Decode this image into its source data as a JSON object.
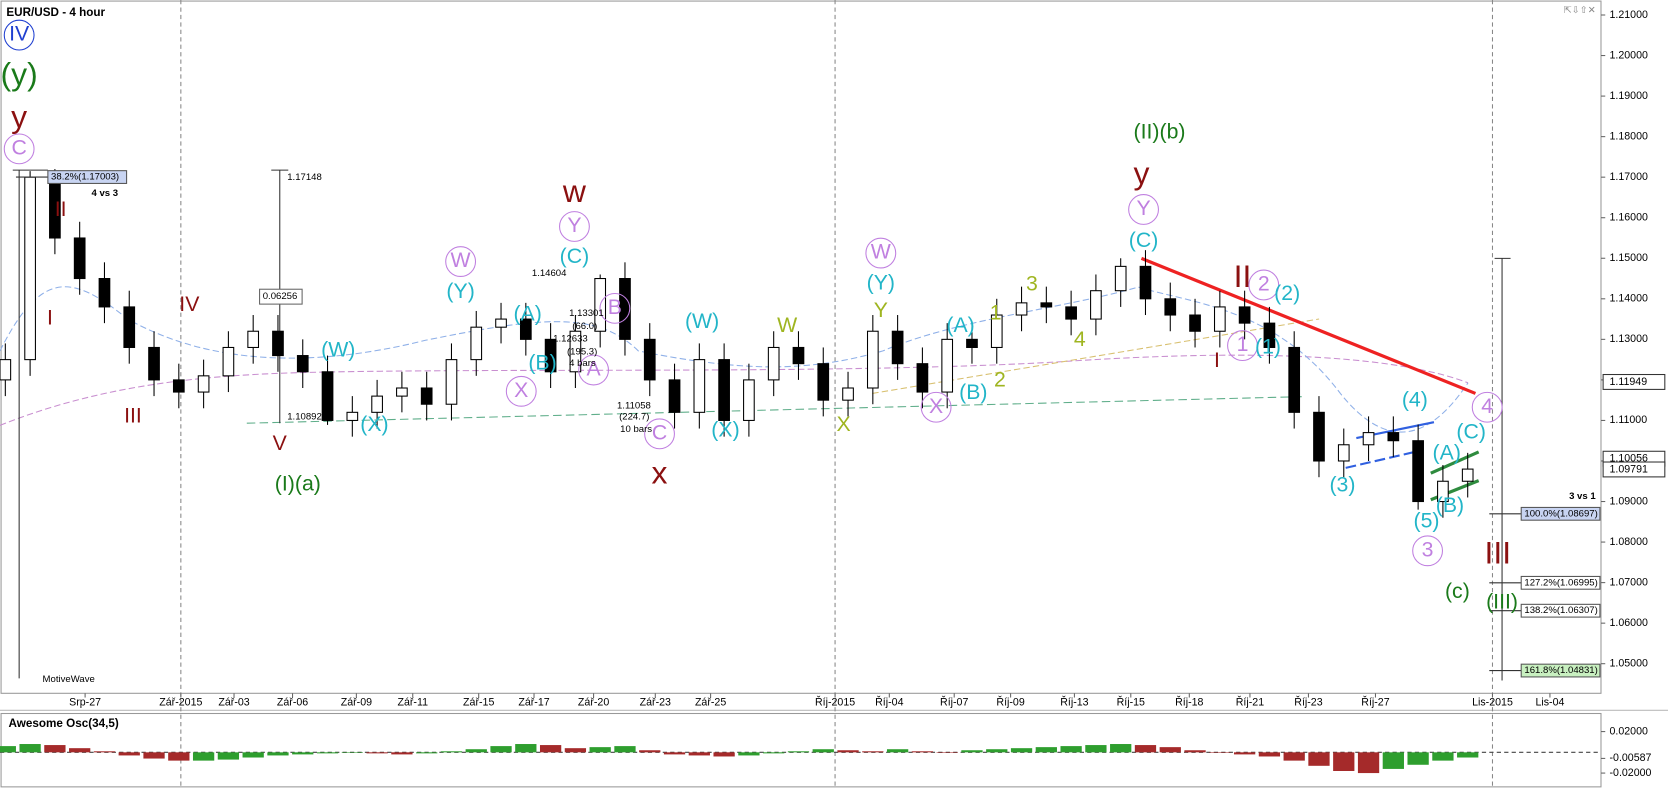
{
  "chart_data": {
    "type": "candlestick",
    "title": "EUR/USD - 4 hour",
    "up_color": "#ffffff",
    "down_color": "#000000",
    "ylim": [
      1.0427,
      1.2137
    ],
    "yticks": [
      {
        "value": 1.21,
        "label": "1.21000"
      },
      {
        "value": 1.2,
        "label": "1.20000"
      },
      {
        "value": 1.19,
        "label": "1.19000"
      },
      {
        "value": 1.18,
        "label": "1.18000"
      },
      {
        "value": 1.17,
        "label": "1.17000"
      },
      {
        "value": 1.16,
        "label": "1.16000"
      },
      {
        "value": 1.15,
        "label": "1.15000"
      },
      {
        "value": 1.14,
        "label": "1.14000"
      },
      {
        "value": 1.13,
        "label": "1.13000"
      },
      {
        "value": 1.12,
        "label": "1.12000"
      },
      {
        "value": 1.11,
        "label": "1.11000"
      },
      {
        "value": 1.1,
        "label": "1.10000"
      },
      {
        "value": 1.09,
        "label": "1.09000"
      },
      {
        "value": 1.08,
        "label": "1.08000"
      },
      {
        "value": 1.07,
        "label": "1.07000"
      },
      {
        "value": 1.06,
        "label": "1.06000"
      },
      {
        "value": 1.05,
        "label": "1.05000"
      }
    ],
    "date_labels": [
      "Srp-27",
      "Zář-2015",
      "Zář-03",
      "Zář-06",
      "Zář-09",
      "Zář-11",
      "Zář-15",
      "Zář-17",
      "Zář-20",
      "Zář-23",
      "Zář-25",
      "Říj-2015",
      "Říj-04",
      "Říj-07",
      "Říj-09",
      "Říj-13",
      "Říj-15",
      "Říj-18",
      "Říj-21",
      "Říj-23",
      "Říj-27",
      "Lis-2015",
      "Lis-04"
    ],
    "open": [
      1.12,
      1.125,
      1.17,
      1.155,
      1.145,
      1.138,
      1.128,
      1.12,
      1.117,
      1.121,
      1.128,
      1.132,
      1.126,
      1.122,
      1.11,
      1.112,
      1.116,
      1.118,
      1.114,
      1.125,
      1.133,
      1.135,
      1.13,
      1.122,
      1.132,
      1.145,
      1.13,
      1.12,
      1.112,
      1.125,
      1.11,
      1.12,
      1.128,
      1.124,
      1.115,
      1.118,
      1.132,
      1.124,
      1.117,
      1.13,
      1.128,
      1.136,
      1.139,
      1.138,
      1.135,
      1.142,
      1.148,
      1.14,
      1.136,
      1.132,
      1.138,
      1.134,
      1.128,
      1.112,
      1.1,
      1.104,
      1.107,
      1.105,
      1.09,
      1.095
    ],
    "high": [
      1.129,
      1.1715,
      1.172,
      1.159,
      1.149,
      1.142,
      1.132,
      1.124,
      1.125,
      1.132,
      1.136,
      1.136,
      1.13,
      1.126,
      1.116,
      1.12,
      1.122,
      1.122,
      1.129,
      1.137,
      1.139,
      1.139,
      1.134,
      1.136,
      1.146,
      1.149,
      1.134,
      1.124,
      1.129,
      1.129,
      1.124,
      1.132,
      1.132,
      1.128,
      1.122,
      1.136,
      1.136,
      1.128,
      1.134,
      1.134,
      1.14,
      1.143,
      1.143,
      1.142,
      1.146,
      1.15,
      1.152,
      1.144,
      1.14,
      1.142,
      1.142,
      1.138,
      1.132,
      1.116,
      1.108,
      1.111,
      1.111,
      1.109,
      1.099,
      1.102
    ],
    "low": [
      1.116,
      1.121,
      1.151,
      1.141,
      1.134,
      1.124,
      1.116,
      1.113,
      1.113,
      1.117,
      1.124,
      1.122,
      1.118,
      1.1089,
      1.106,
      1.108,
      1.112,
      1.11,
      1.11,
      1.121,
      1.129,
      1.126,
      1.118,
      1.118,
      1.128,
      1.126,
      1.116,
      1.108,
      1.108,
      1.106,
      1.106,
      1.116,
      1.12,
      1.111,
      1.111,
      1.114,
      1.12,
      1.113,
      1.113,
      1.124,
      1.124,
      1.132,
      1.134,
      1.131,
      1.131,
      1.138,
      1.136,
      1.132,
      1.128,
      1.128,
      1.13,
      1.124,
      1.108,
      1.096,
      1.096,
      1.1,
      1.101,
      1.088,
      1.086,
      1.091
    ],
    "close": [
      1.125,
      1.17,
      1.155,
      1.145,
      1.138,
      1.128,
      1.12,
      1.117,
      1.121,
      1.128,
      1.132,
      1.126,
      1.122,
      1.11,
      1.112,
      1.116,
      1.118,
      1.114,
      1.125,
      1.133,
      1.135,
      1.13,
      1.122,
      1.132,
      1.145,
      1.13,
      1.12,
      1.112,
      1.125,
      1.11,
      1.12,
      1.128,
      1.124,
      1.115,
      1.118,
      1.132,
      1.124,
      1.117,
      1.13,
      1.128,
      1.136,
      1.139,
      1.138,
      1.135,
      1.142,
      1.148,
      1.14,
      1.136,
      1.132,
      1.138,
      1.134,
      1.128,
      1.112,
      1.1,
      1.104,
      1.107,
      1.105,
      1.09,
      1.095,
      1.098
    ],
    "price_markers": [
      {
        "value": 1.11949,
        "label": "1.11949"
      },
      {
        "value": 1.10056,
        "label": "1.10056"
      },
      {
        "value": 1.09791,
        "label": "1.09791"
      }
    ],
    "fib_levels": [
      {
        "value": 1.17003,
        "label": "38.2%(1.17003)"
      },
      {
        "value": 1.08697,
        "label": "100.0%(1.08697)"
      },
      {
        "value": 1.06995,
        "label": "127.2%(1.06995)"
      },
      {
        "value": 1.06307,
        "label": "138.2%(1.06307)"
      },
      {
        "value": 1.04831,
        "label": "161.8%(1.04831)"
      }
    ],
    "wave_labels": [
      "IV",
      "(y)",
      "y",
      "C",
      "II",
      "I",
      "III",
      "IV",
      "V",
      "(I)(a)",
      "(W)",
      "(X)",
      "W",
      "(Y)",
      "(A)",
      "(B)",
      "X",
      "w",
      "Y",
      "(C)",
      "B",
      "A",
      "C",
      "x",
      "(W)",
      "(X)",
      "W",
      "W",
      "(Y)",
      "Y",
      "X",
      "X",
      "(A)",
      "(B)",
      "1",
      "2",
      "3",
      "4",
      "(II)(b)",
      "y",
      "Y",
      "(C)",
      "II",
      "2",
      "(2)",
      "I",
      "1",
      "(1)",
      "(3)",
      "(4)",
      "(C)",
      "(A)",
      "(B)",
      "(5)",
      "3",
      "4",
      "III",
      "(c)",
      "(III)"
    ],
    "notes": [
      "1.14604",
      "1.13301",
      "(66.0)",
      "1.12633",
      "(195.3)",
      "4 bars",
      "1.11058",
      "(224.7)",
      "10 bars",
      "1.10892",
      "1.17148",
      "0.06256",
      "4 vs 3",
      "3 vs 1",
      "MotiveWave"
    ],
    "oscillator": {
      "title": "Awesome Osc(34,5)",
      "up_color": "#2e9e2e",
      "down_color": "#a52a2a",
      "ylim": [
        -0.0333,
        0.0364
      ],
      "yticks": [
        {
          "value": 0.02,
          "label": "0.02000"
        },
        {
          "value": -0.00587,
          "label": "-0.00587"
        },
        {
          "value": -0.02,
          "label": "-0.02000"
        }
      ],
      "values": [
        0.006,
        0.008,
        0.007,
        0.004,
        0.001,
        -0.003,
        -0.006,
        -0.008,
        -0.008,
        -0.007,
        -0.005,
        -0.003,
        -0.002,
        -0.001,
        0.0,
        -0.001,
        -0.002,
        -0.001,
        0.001,
        0.003,
        0.006,
        0.008,
        0.007,
        0.004,
        0.005,
        0.006,
        0.002,
        -0.002,
        -0.003,
        -0.004,
        -0.003,
        -0.001,
        0.001,
        0.003,
        0.002,
        0.001,
        0.003,
        0.001,
        0.0,
        0.002,
        0.003,
        0.004,
        0.005,
        0.006,
        0.007,
        0.008,
        0.007,
        0.005,
        0.002,
        0.0,
        -0.002,
        -0.004,
        -0.008,
        -0.013,
        -0.018,
        -0.02,
        -0.016,
        -0.012,
        -0.008,
        -0.005
      ]
    }
  }
}
